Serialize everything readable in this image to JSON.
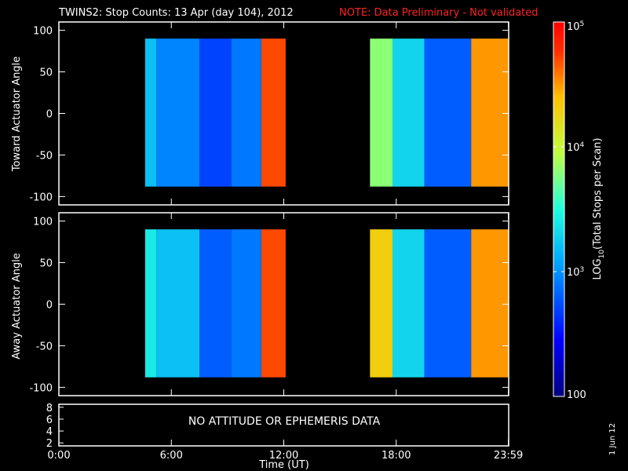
{
  "title": "TWINS2: Stop Counts: 13 Apr (day 104), 2012",
  "note": "NOTE: Data Preliminary - Not validated",
  "stamp": "1 Jun 12",
  "colors": {
    "note": "#ff2020",
    "frame": "#ffffff",
    "background": "#000000"
  },
  "chart_data": [
    {
      "type": "heatmap",
      "panel": "top",
      "ylabel": "Toward Actuator Angle",
      "ylim": [
        -110,
        110
      ],
      "yticks": [
        100,
        50,
        0,
        -50,
        -100
      ],
      "xlim": [
        0,
        24
      ],
      "data_segments": [
        {
          "x_start": 4.6,
          "x_end": 12.1,
          "y_start": -88,
          "y_end": 90
        },
        {
          "x_start": 16.6,
          "x_end": 24.0,
          "y_start": -88,
          "y_end": 90
        }
      ],
      "log10_counts_profile": [
        {
          "x_start": 4.6,
          "x_end": 5.2,
          "value": 3.2
        },
        {
          "x_start": 5.2,
          "x_end": 7.5,
          "value": 2.95
        },
        {
          "x_start": 7.5,
          "x_end": 9.2,
          "value": 2.7
        },
        {
          "x_start": 9.2,
          "x_end": 10.8,
          "value": 2.9
        },
        {
          "x_start": 10.8,
          "x_end": 12.1,
          "value": 4.7
        },
        {
          "x_start": 16.6,
          "x_end": 17.8,
          "value": 3.8
        },
        {
          "x_start": 17.8,
          "x_end": 19.5,
          "value": 3.3
        },
        {
          "x_start": 19.5,
          "x_end": 22.0,
          "value": 2.8
        },
        {
          "x_start": 22.0,
          "x_end": 24.0,
          "value": 4.5
        }
      ]
    },
    {
      "type": "heatmap",
      "panel": "middle",
      "ylabel": "Away Actuator Angle",
      "ylim": [
        -110,
        110
      ],
      "yticks": [
        100,
        50,
        0,
        -50,
        -100
      ],
      "xlim": [
        0,
        24
      ],
      "data_segments": [
        {
          "x_start": 4.6,
          "x_end": 12.1,
          "y_start": -88,
          "y_end": 90
        },
        {
          "x_start": 16.6,
          "x_end": 24.0,
          "y_start": -88,
          "y_end": 90
        }
      ],
      "log10_counts_profile": [
        {
          "x_start": 4.6,
          "x_end": 5.2,
          "value": 3.4
        },
        {
          "x_start": 5.2,
          "x_end": 7.5,
          "value": 3.2
        },
        {
          "x_start": 7.5,
          "x_end": 9.2,
          "value": 2.8
        },
        {
          "x_start": 9.2,
          "x_end": 10.8,
          "value": 2.9
        },
        {
          "x_start": 10.8,
          "x_end": 12.1,
          "value": 4.7
        },
        {
          "x_start": 16.6,
          "x_end": 17.8,
          "value": 4.3
        },
        {
          "x_start": 17.8,
          "x_end": 19.5,
          "value": 3.3
        },
        {
          "x_start": 19.5,
          "x_end": 22.0,
          "value": 2.8
        },
        {
          "x_start": 22.0,
          "x_end": 24.0,
          "value": 4.5
        }
      ]
    },
    {
      "type": "line",
      "panel": "bottom",
      "ylim": [
        1.5,
        8.5
      ],
      "yticks": [
        8,
        6,
        4,
        2
      ],
      "message": "NO ATTITUDE OR EPHEMERIS DATA"
    }
  ],
  "x_axis": {
    "label": "Time (UT)",
    "ticks": [
      {
        "value": 0,
        "label": "0:00"
      },
      {
        "value": 6,
        "label": "6:00"
      },
      {
        "value": 12,
        "label": "12:00"
      },
      {
        "value": 18,
        "label": "18:00"
      },
      {
        "value": 23.983,
        "label": "23:59"
      }
    ]
  },
  "colorbar": {
    "label": "LOG10(Total Stops per Scan)",
    "scale": "log",
    "range": [
      100,
      100000
    ],
    "ticks": [
      {
        "value": 100,
        "label": "100"
      },
      {
        "value": 1000,
        "label": "10",
        "exp": "3"
      },
      {
        "value": 10000,
        "label": "10",
        "exp": "4"
      },
      {
        "value": 100000,
        "label": "10",
        "exp": "5"
      }
    ]
  }
}
